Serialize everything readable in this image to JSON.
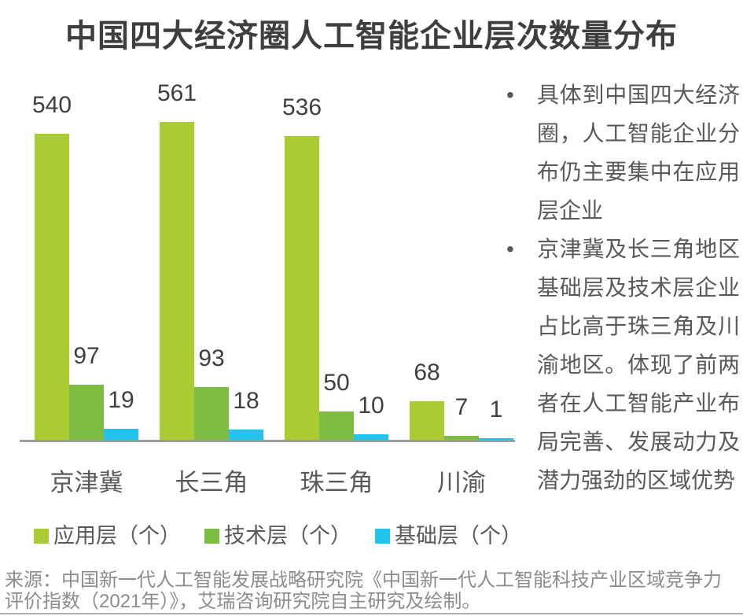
{
  "chart_data": {
    "type": "bar",
    "title": "中国四大经济圈人工智能企业层次数量分布",
    "categories": [
      "京津冀",
      "长三角",
      "珠三角",
      "川渝"
    ],
    "series": [
      {
        "name": "应用层（个）",
        "color": "#a9cc33",
        "values": [
          540,
          561,
          536,
          68
        ]
      },
      {
        "name": "技术层（个）",
        "color": "#7dbe42",
        "values": [
          97,
          93,
          50,
          7
        ]
      },
      {
        "name": "基础层（个）",
        "color": "#22c3ee",
        "values": [
          19,
          18,
          10,
          1
        ]
      }
    ],
    "ylim": [
      0,
      600
    ],
    "value_labels": true,
    "grid": false,
    "y_axis_visible": false,
    "legend_position": "bottom-left"
  },
  "notes": {
    "bullet_char": "•",
    "items": [
      "具体到中国四大经济圈，人工智能企业分布仍主要集中在应用层企业",
      "京津冀及长三角地区基础层及技术层企业占比高于珠三角及川渝地区。体现了前两者在人工智能产业布局完善、发展动力及潜力强劲的区域优势"
    ]
  },
  "source": "来源：中国新一代人工智能发展战略研究院《中国新一代人工智能科技产业区域竞争力评价指数（2021年）》，艾瑞咨询研究院自主研究及绘制。",
  "colors": {
    "title": "#3e3e3e",
    "value_label": "#3f3f3f",
    "category": "#595959",
    "note_text": "#595959",
    "source_text": "#8c8c8c",
    "axis": "#9c9c9c",
    "divider": "#b0b0b0"
  }
}
